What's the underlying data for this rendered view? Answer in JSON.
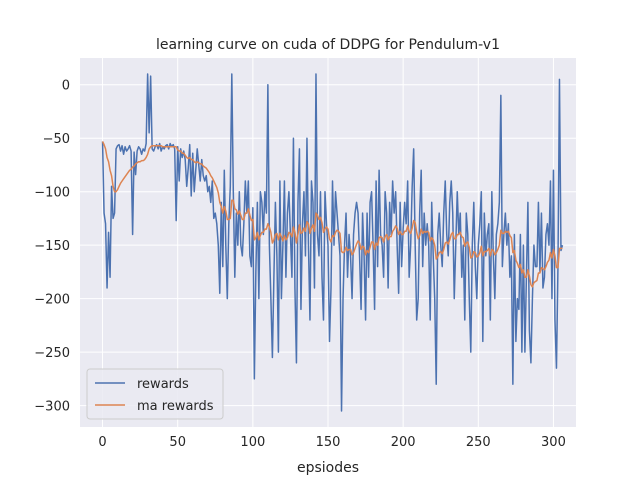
{
  "chart_data": {
    "type": "line",
    "title": "learning curve on cuda of DDPG for Pendulum-v1",
    "xlabel": "epsiodes",
    "ylabel": "",
    "xlim": [
      -15,
      315
    ],
    "ylim": [
      -320,
      25
    ],
    "xticks": [
      0,
      50,
      100,
      150,
      200,
      250,
      300
    ],
    "yticks": [
      0,
      -50,
      -100,
      -150,
      -200,
      -250,
      -300
    ],
    "grid": true,
    "legend_position": "lower-left",
    "colors": {
      "rewards": "#4c72b0",
      "ma_rewards": "#dd8452",
      "plot_bg": "#eaeaf2",
      "grid": "#ffffff"
    },
    "series": [
      {
        "name": "rewards",
        "color": "#4c72b0",
        "values": [
          -53,
          -120,
          -130,
          -190,
          -138,
          -180,
          -95,
          -125,
          -120,
          -60,
          -57,
          -56,
          -62,
          -57,
          -65,
          -58,
          -62,
          -60,
          -57,
          -62,
          -140,
          -63,
          -84,
          -62,
          -58,
          -60,
          -65,
          -60,
          -62,
          -55,
          10,
          -45,
          8,
          -60,
          -62,
          -58,
          -56,
          -60,
          -55,
          -62,
          -58,
          -60,
          -57,
          -56,
          -60,
          -55,
          -58,
          -56,
          -60,
          -127,
          -58,
          -90,
          -60,
          -68,
          -62,
          -70,
          -95,
          -78,
          -56,
          -104,
          -64,
          -100,
          -80,
          -60,
          -75,
          -90,
          -70,
          -85,
          -90,
          -85,
          -100,
          -95,
          -110,
          -90,
          -125,
          -120,
          -130,
          -150,
          -195,
          -110,
          -170,
          -80,
          -150,
          -200,
          -130,
          -95,
          10,
          -100,
          -180,
          -120,
          -150,
          -100,
          -150,
          -160,
          -130,
          -90,
          -120,
          -90,
          -160,
          -170,
          -115,
          -275,
          -175,
          -110,
          -200,
          -100,
          -110,
          -140,
          -100,
          -120,
          0,
          -150,
          -200,
          -255,
          -180,
          -110,
          -160,
          -250,
          -90,
          -200,
          -150,
          -90,
          -180,
          -120,
          -100,
          -140,
          -180,
          -50,
          -190,
          -260,
          -110,
          -60,
          -210,
          -130,
          -100,
          -160,
          -50,
          -150,
          -220,
          -90,
          -110,
          -190,
          10,
          -140,
          -160,
          -100,
          -180,
          -220,
          -100,
          -130,
          -150,
          -240,
          -190,
          -90,
          -150,
          -100,
          -120,
          -140,
          -160,
          -305,
          -200,
          -150,
          -120,
          -180,
          -140,
          -160,
          -200,
          -140,
          -120,
          -110,
          -120,
          -160,
          -210,
          -120,
          -160,
          -220,
          -120,
          -180,
          -110,
          -100,
          -150,
          -210,
          -90,
          -170,
          -80,
          -140,
          -150,
          -180,
          -100,
          -120,
          -190,
          -110,
          -140,
          -90,
          -120,
          -100,
          -150,
          -195,
          -110,
          -170,
          -135,
          -110,
          -130,
          -90,
          -180,
          -150,
          -95,
          -60,
          -150,
          -220,
          -200,
          -120,
          -80,
          -170,
          -120,
          -150,
          -130,
          -150,
          -220,
          -110,
          -160,
          -200,
          -280,
          -140,
          -120,
          -150,
          -170,
          -120,
          -90,
          -140,
          -160,
          -110,
          -90,
          -120,
          -200,
          -150,
          -100,
          -140,
          -120,
          -180,
          -150,
          -220,
          -120,
          -140,
          -200,
          -250,
          -150,
          -110,
          -170,
          -200,
          -150,
          -130,
          -100,
          -240,
          -120,
          -160,
          -140,
          -130,
          -220,
          -100,
          -160,
          -200,
          -140,
          -130,
          -110,
          -10,
          -170,
          -140,
          -120,
          -150,
          -130,
          -180,
          -160,
          -280,
          -140,
          -240,
          -200,
          -210,
          -140,
          -250,
          -150,
          -250,
          -180,
          -110,
          -230,
          -260,
          -200,
          -150,
          -170,
          -170,
          -110,
          -175,
          -120,
          -190,
          -180,
          -140,
          -130,
          -150,
          -90,
          -200,
          -80,
          -220,
          -265,
          -170,
          5,
          -155,
          -150
        ]
      },
      {
        "name": "ma rewards",
        "color": "#dd8452",
        "values": [
          -53,
          -56,
          -60,
          -68,
          -72,
          -80,
          -85,
          -95,
          -100,
          -100,
          -98,
          -95,
          -92,
          -90,
          -88,
          -86,
          -84,
          -82,
          -80,
          -79,
          -77,
          -76,
          -74,
          -73,
          -72,
          -72,
          -71,
          -71,
          -70,
          -68,
          -65,
          -60,
          -58,
          -57,
          -57,
          -57,
          -57,
          -57,
          -57,
          -57,
          -58,
          -58,
          -58,
          -58,
          -58,
          -58,
          -58,
          -58,
          -58,
          -58,
          -61,
          -62,
          -62,
          -64,
          -64,
          -66,
          -68,
          -69,
          -68,
          -70,
          -70,
          -72,
          -73,
          -72,
          -73,
          -74,
          -74,
          -76,
          -77,
          -78,
          -80,
          -82,
          -85,
          -87,
          -90,
          -93,
          -96,
          -101,
          -110,
          -114,
          -120,
          -114,
          -118,
          -126,
          -126,
          -125,
          -108,
          -108,
          -116,
          -117,
          -121,
          -118,
          -122,
          -126,
          -126,
          -120,
          -120,
          -116,
          -122,
          -127,
          -126,
          -145,
          -143,
          -138,
          -145,
          -141,
          -138,
          -138,
          -135,
          -135,
          -130,
          -133,
          -138,
          -148,
          -145,
          -140,
          -139,
          -145,
          -139,
          -142,
          -146,
          -141,
          -145,
          -143,
          -138,
          -139,
          -142,
          -133,
          -138,
          -148,
          -140,
          -131,
          -139,
          -138,
          -134,
          -137,
          -128,
          -130,
          -139,
          -134,
          -131,
          -137,
          -120,
          -122,
          -126,
          -124,
          -129,
          -138,
          -135,
          -133,
          -135,
          -144,
          -147,
          -141,
          -142,
          -138,
          -136,
          -137,
          -139,
          -156,
          -157,
          -156,
          -152,
          -155,
          -154,
          -154,
          -159,
          -157,
          -153,
          -149,
          -146,
          -148,
          -154,
          -151,
          -152,
          -159,
          -155,
          -157,
          -152,
          -147,
          -147,
          -154,
          -148,
          -150,
          -143,
          -142,
          -143,
          -147,
          -142,
          -140,
          -145,
          -142,
          -142,
          -137,
          -135,
          -132,
          -134,
          -140,
          -137,
          -140,
          -140,
          -137,
          -137,
          -132,
          -137,
          -139,
          -134,
          -127,
          -129,
          -138,
          -144,
          -141,
          -135,
          -139,
          -137,
          -138,
          -137,
          -138,
          -146,
          -143,
          -145,
          -150,
          -163,
          -161,
          -157,
          -156,
          -158,
          -154,
          -148,
          -147,
          -149,
          -145,
          -140,
          -138,
          -144,
          -144,
          -140,
          -140,
          -138,
          -142,
          -143,
          -151,
          -148,
          -147,
          -152,
          -162,
          -161,
          -156,
          -157,
          -161,
          -160,
          -157,
          -151,
          -160,
          -156,
          -156,
          -155,
          -153,
          -160,
          -154,
          -155,
          -159,
          -157,
          -154,
          -150,
          -136,
          -139,
          -139,
          -137,
          -138,
          -137,
          -141,
          -143,
          -157,
          -155,
          -164,
          -167,
          -171,
          -168,
          -176,
          -173,
          -180,
          -180,
          -173,
          -179,
          -187,
          -189,
          -185,
          -184,
          -183,
          -176,
          -176,
          -171,
          -172,
          -173,
          -170,
          -166,
          -164,
          -157,
          -162,
          -154,
          -160,
          -171,
          -171,
          -153,
          -153,
          -153
        ]
      }
    ]
  }
}
